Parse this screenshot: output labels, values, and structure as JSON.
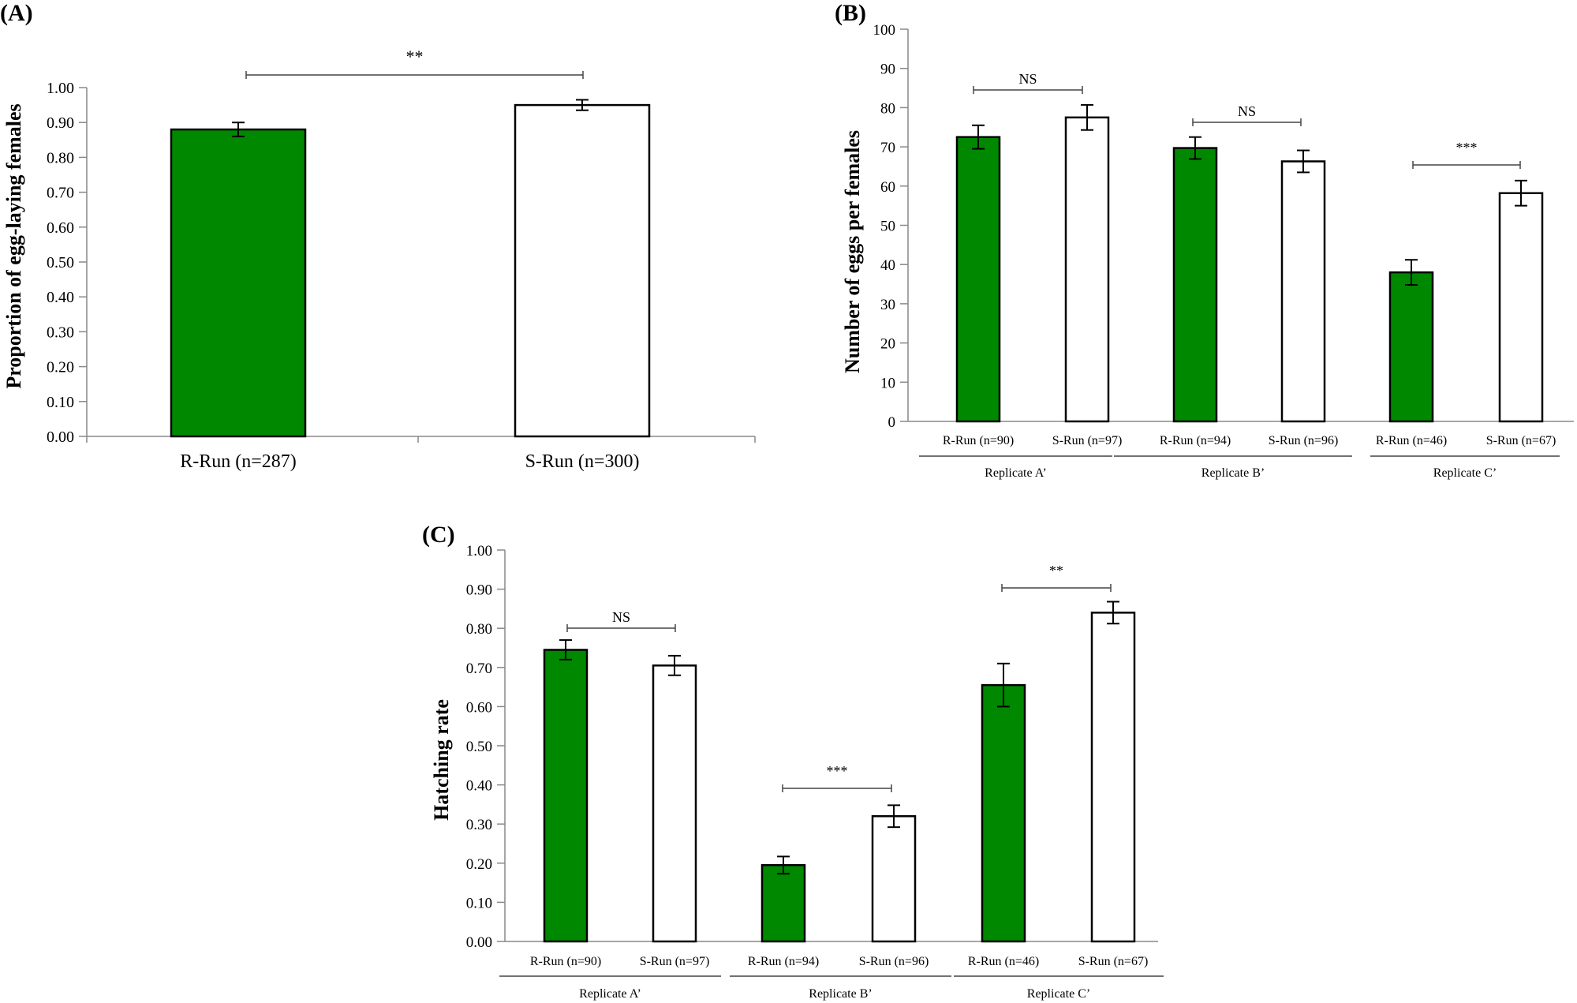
{
  "colors": {
    "r_run": "#008800",
    "s_run": "#ffffff",
    "axis": "#888888"
  },
  "chart_data": [
    {
      "id": "A",
      "type": "bar",
      "panel_label": "(A)",
      "ylabel": "Proportion of egg-laying females",
      "ylim": [
        0,
        1.0
      ],
      "yticks": [
        "0.00",
        "0.10",
        "0.20",
        "0.30",
        "0.40",
        "0.50",
        "0.60",
        "0.70",
        "0.80",
        "0.90",
        "1.00"
      ],
      "categories": [
        "R-Run (n=287)",
        "S-Run (n=300)"
      ],
      "values": [
        0.88,
        0.95
      ],
      "errors": [
        0.02,
        0.015
      ],
      "significance": [
        {
          "from": 0,
          "to": 1,
          "label": "**"
        }
      ]
    },
    {
      "id": "B",
      "type": "bar",
      "panel_label": "(B)",
      "ylabel": "Number of eggs per females",
      "ylim": [
        0,
        100
      ],
      "yticks": [
        "0",
        "10",
        "20",
        "30",
        "40",
        "50",
        "60",
        "70",
        "80",
        "90",
        "100"
      ],
      "categories": [
        "R-Run (n=90)",
        "S-Run (n=97)",
        "R-Run (n=94)",
        "S-Run (n=96)",
        "R-Run (n=46)",
        "S-Run (n=67)"
      ],
      "groups": [
        "Replicate A’",
        "Replicate B’",
        "Replicate C’"
      ],
      "values": [
        72.5,
        77.5,
        69.7,
        66.3,
        38.0,
        58.2
      ],
      "errors": [
        3.0,
        3.2,
        2.8,
        2.8,
        3.2,
        3.2
      ],
      "significance": [
        {
          "from": 0,
          "to": 1,
          "label": "NS"
        },
        {
          "from": 2,
          "to": 3,
          "label": "NS"
        },
        {
          "from": 4,
          "to": 5,
          "label": "***"
        }
      ]
    },
    {
      "id": "C",
      "type": "bar",
      "panel_label": "(C)",
      "ylabel": "Hatching rate",
      "ylim": [
        0,
        1.0
      ],
      "yticks": [
        "0.00",
        "0.10",
        "0.20",
        "0.30",
        "0.40",
        "0.50",
        "0.60",
        "0.70",
        "0.80",
        "0.90",
        "1.00"
      ],
      "categories": [
        "R-Run (n=90)",
        "S-Run (n=97)",
        "R-Run (n=94)",
        "S-Run (n=96)",
        "R-Run (n=46)",
        "S-Run (n=67)"
      ],
      "groups": [
        "Replicate A’",
        "Replicate B’",
        "Replicate C’"
      ],
      "values": [
        0.745,
        0.705,
        0.195,
        0.32,
        0.655,
        0.84
      ],
      "errors": [
        0.025,
        0.025,
        0.022,
        0.028,
        0.055,
        0.028
      ],
      "significance": [
        {
          "from": 0,
          "to": 1,
          "label": "NS"
        },
        {
          "from": 2,
          "to": 3,
          "label": "***"
        },
        {
          "from": 4,
          "to": 5,
          "label": "**"
        }
      ]
    }
  ]
}
